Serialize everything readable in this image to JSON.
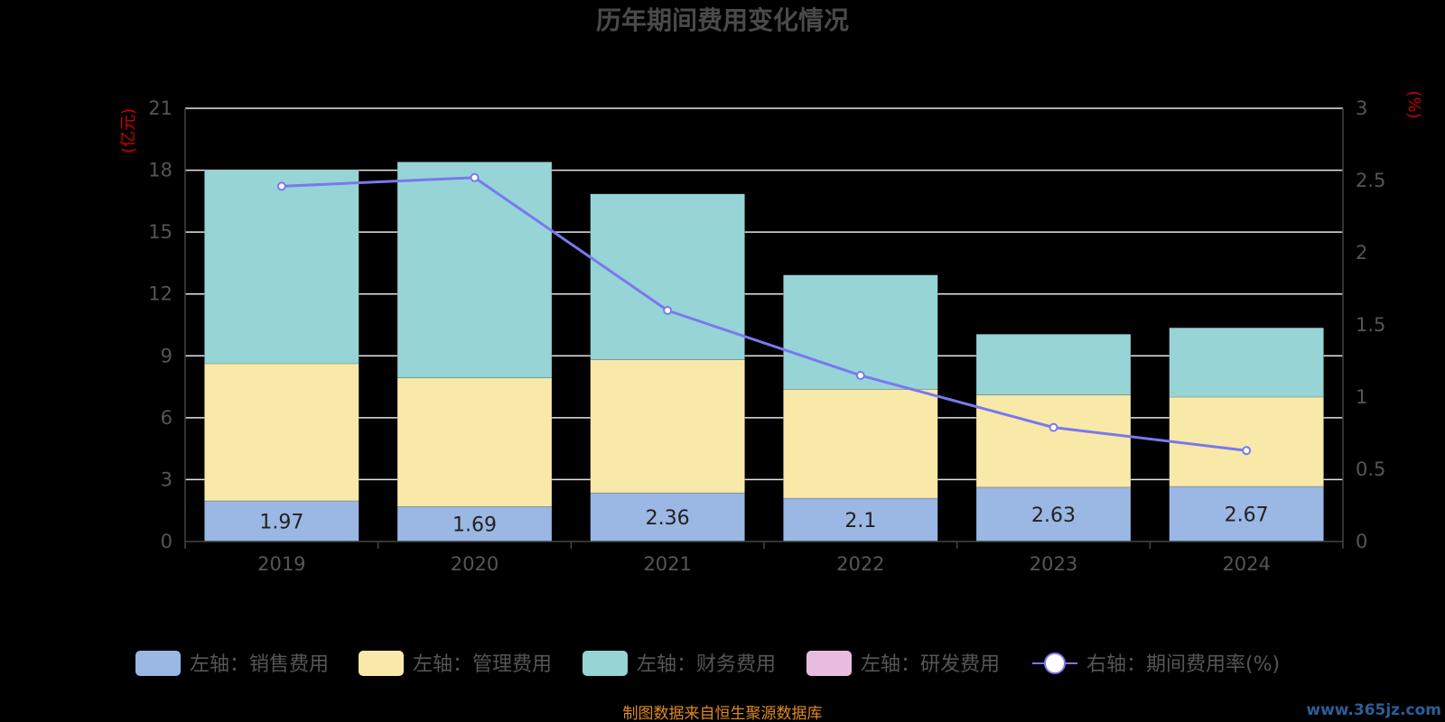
{
  "chart_data": {
    "type": "bar",
    "title": "历年期间费用变化情况",
    "left_axis_unit": "(亿元)",
    "right_axis_unit": "(%)",
    "categories": [
      "2019",
      "2020",
      "2021",
      "2022",
      "2023",
      "2024"
    ],
    "left_ylim": [
      0,
      21
    ],
    "left_ticks": [
      "0",
      "3",
      "6",
      "9",
      "12",
      "15",
      "18",
      "21"
    ],
    "right_ylim": [
      0,
      3
    ],
    "right_ticks": [
      "0",
      "0.5",
      "1",
      "1.5",
      "2",
      "2.5",
      "3"
    ],
    "grid": true,
    "legend_position": "bottom",
    "series": [
      {
        "name": "左轴：销售费用",
        "type": "bar",
        "axis": "left",
        "stack": "cost",
        "color": "#9bb7e3",
        "values": [
          1.97,
          1.69,
          2.36,
          2.1,
          2.63,
          2.67
        ],
        "show_labels": true
      },
      {
        "name": "左轴：管理费用",
        "type": "bar",
        "axis": "left",
        "stack": "cost",
        "color": "#f9e9a8",
        "values": [
          6.65,
          6.24,
          6.45,
          5.27,
          4.47,
          4.33
        ],
        "show_labels": false
      },
      {
        "name": "左轴：财务费用",
        "type": "bar",
        "axis": "left",
        "stack": "cost",
        "color": "#96d4d6",
        "values": [
          9.38,
          10.47,
          8.04,
          5.55,
          2.95,
          3.36
        ],
        "show_labels": false
      },
      {
        "name": "左轴：研发费用",
        "type": "bar",
        "axis": "left",
        "stack": "cost",
        "color": "#e8bcdf",
        "values": [
          0,
          0,
          0,
          0,
          0,
          0
        ],
        "show_labels": false
      },
      {
        "name": "右轴：期间费用率(%)",
        "type": "line",
        "axis": "right",
        "color": "#7a78ee",
        "values": [
          2.46,
          2.52,
          1.6,
          1.15,
          0.79,
          0.63
        ]
      }
    ]
  },
  "footer": {
    "source": "制图数据来自恒生聚源数据库",
    "watermark": "www.365jz.com"
  },
  "colors": {
    "background": "#000000",
    "title": "#4a4a4a",
    "axis_text": "#555555",
    "unit_text": "#cc0000",
    "grid": "#e6e6e6",
    "source": "#e08a1c",
    "watermark": "#2c5f99"
  }
}
